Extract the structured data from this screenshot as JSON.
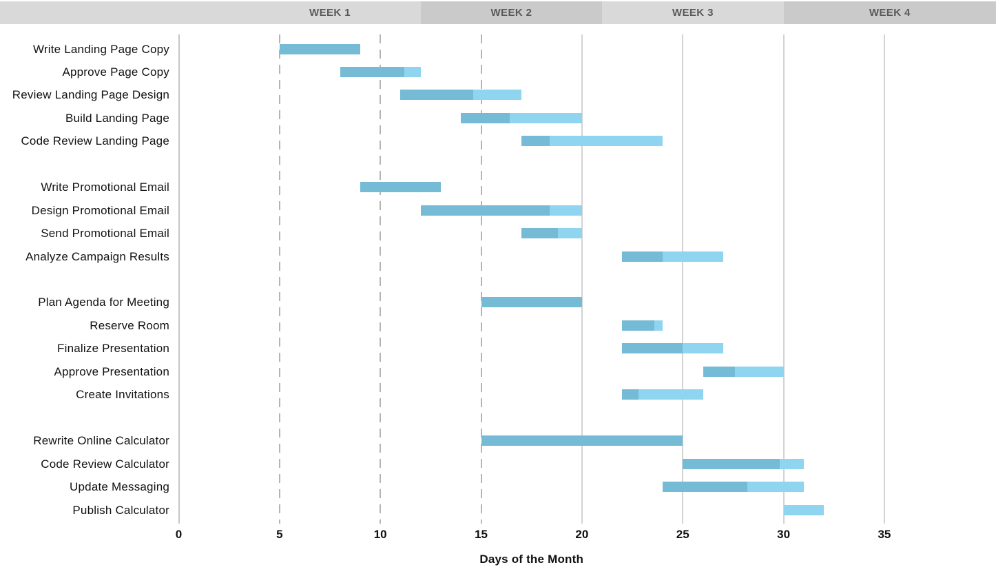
{
  "header": {
    "band_colors": {
      "light": "#d9d9d9",
      "dark": "#cacaca"
    },
    "weeks": [
      "WEEK 1",
      "WEEK 2",
      "WEEK 3",
      "WEEK 4"
    ]
  },
  "chart_data": {
    "type": "bar",
    "variant": "gantt",
    "title": "",
    "xlabel": "Days of the Month",
    "ylabel": "",
    "x_ticks": [
      0,
      5,
      10,
      15,
      20,
      25,
      30,
      35
    ],
    "xlim": [
      0,
      40.5
    ],
    "grid": "vertical",
    "legend": "none",
    "week_bands": [
      {
        "label": "WEEK 1",
        "start_day": 3,
        "end_day": 12,
        "shade": "light"
      },
      {
        "label": "WEEK 2",
        "start_day": 12,
        "end_day": 21,
        "shade": "dark"
      },
      {
        "label": "WEEK 3",
        "start_day": 21,
        "end_day": 30,
        "shade": "light"
      },
      {
        "label": "WEEK 4",
        "start_day": 30,
        "end_day": 39,
        "shade": "dark"
      }
    ],
    "gridlines": [
      {
        "day": 0,
        "style": "axis"
      },
      {
        "day": 5,
        "style": "dashed"
      },
      {
        "day": 10,
        "style": "dashed"
      },
      {
        "day": 15,
        "style": "dashed"
      },
      {
        "day": 20,
        "style": "solid"
      },
      {
        "day": 25,
        "style": "solid"
      },
      {
        "day": 30,
        "style": "solid"
      },
      {
        "day": 35,
        "style": "solid"
      }
    ],
    "bar_colors": {
      "complete": "#76bbd5",
      "remaining": "#90d5f0"
    },
    "groups": [
      {
        "tasks": [
          {
            "name": "Write Landing Page Copy",
            "start": 5,
            "end": 9,
            "percent_complete": 100
          },
          {
            "name": "Approve Page Copy",
            "start": 8,
            "end": 12,
            "percent_complete": 80
          },
          {
            "name": "Review Landing Page Design",
            "start": 11,
            "end": 17,
            "percent_complete": 60
          },
          {
            "name": "Build Landing Page",
            "start": 14,
            "end": 20,
            "percent_complete": 40
          },
          {
            "name": "Code Review Landing Page",
            "start": 17,
            "end": 24,
            "percent_complete": 20
          }
        ]
      },
      {
        "tasks": [
          {
            "name": "Write Promotional Email",
            "start": 9,
            "end": 13,
            "percent_complete": 100
          },
          {
            "name": "Design Promotional Email",
            "start": 12,
            "end": 20,
            "percent_complete": 80
          },
          {
            "name": "Send Promotional Email",
            "start": 17,
            "end": 20,
            "percent_complete": 60
          },
          {
            "name": "Analyze Campaign Results",
            "start": 22,
            "end": 27,
            "percent_complete": 40
          }
        ]
      },
      {
        "tasks": [
          {
            "name": "Plan Agenda for Meeting",
            "start": 15,
            "end": 20,
            "percent_complete": 100
          },
          {
            "name": "Reserve Room",
            "start": 22,
            "end": 24,
            "percent_complete": 80
          },
          {
            "name": "Finalize Presentation",
            "start": 22,
            "end": 27,
            "percent_complete": 60
          },
          {
            "name": "Approve Presentation",
            "start": 26,
            "end": 30,
            "percent_complete": 40
          },
          {
            "name": "Create Invitations",
            "start": 22,
            "end": 26,
            "percent_complete": 20
          }
        ]
      },
      {
        "tasks": [
          {
            "name": "Rewrite Online Calculator",
            "start": 15,
            "end": 25,
            "percent_complete": 100
          },
          {
            "name": "Code Review Calculator",
            "start": 25,
            "end": 31,
            "percent_complete": 80
          },
          {
            "name": "Update Messaging",
            "start": 24,
            "end": 31,
            "percent_complete": 60
          },
          {
            "name": "Publish Calculator",
            "start": 30,
            "end": 32,
            "percent_complete": 0
          }
        ]
      }
    ]
  }
}
